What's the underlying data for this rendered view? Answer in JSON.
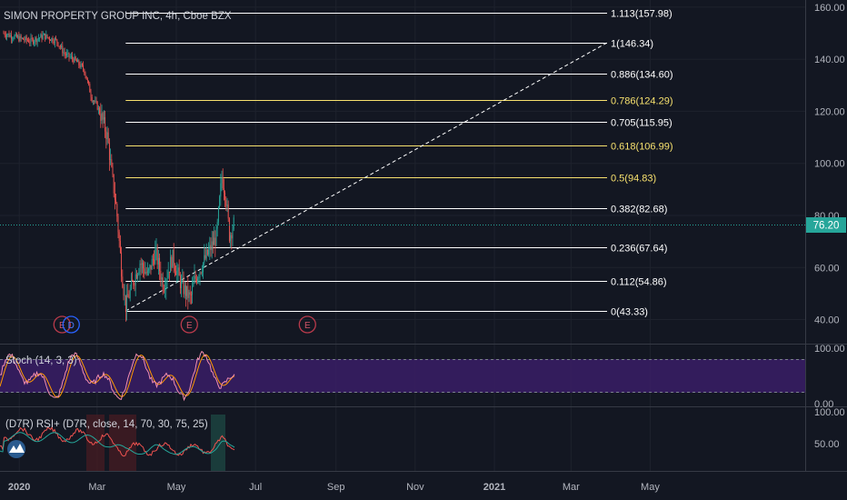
{
  "header": {
    "title": "SIMON PROPERTY GROUP INC, 4h, Cboe BZX"
  },
  "price_axis": {
    "ticks": [
      "160.00",
      "140.00",
      "120.00",
      "100.00",
      "80.00",
      "60.00",
      "40.00"
    ],
    "last_price": "76.20",
    "last_price_color": "#26a69a"
  },
  "time_axis": {
    "labels": [
      "2020",
      "Mar",
      "May",
      "Jul",
      "Sep",
      "Nov",
      "2021",
      "Mar",
      "May"
    ]
  },
  "fib_levels": [
    {
      "label": "1.113(157.98)",
      "price": 157.98,
      "color": "#ffffff"
    },
    {
      "label": "1(146.34)",
      "price": 146.34,
      "color": "#ffffff"
    },
    {
      "label": "0.886(134.60)",
      "price": 134.6,
      "color": "#ffffff"
    },
    {
      "label": "0.786(124.29)",
      "price": 124.29,
      "color": "#f7e16e"
    },
    {
      "label": "0.705(115.95)",
      "price": 115.95,
      "color": "#ffffff"
    },
    {
      "label": "0.618(106.99)",
      "price": 106.99,
      "color": "#f7e16e"
    },
    {
      "label": "0.5(94.83)",
      "price": 94.83,
      "color": "#f7e16e"
    },
    {
      "label": "0.382(82.68)",
      "price": 82.68,
      "color": "#ffffff"
    },
    {
      "label": "0.236(67.64)",
      "price": 67.64,
      "color": "#ffffff"
    },
    {
      "label": "0.112(54.86)",
      "price": 54.86,
      "color": "#ffffff"
    },
    {
      "label": "0(43.33)",
      "price": 43.33,
      "color": "#ffffff"
    }
  ],
  "event_markers": [
    {
      "label": "E",
      "date": "2020-02-03"
    },
    {
      "label": "D",
      "date": "2020-02-10"
    },
    {
      "label": "E",
      "date": "2020-05-11"
    },
    {
      "label": "E",
      "date": "2020-08-10"
    }
  ],
  "stoch": {
    "title": "Stoch (14, 3, 3)",
    "ticks": [
      "100.00",
      "0.00"
    ],
    "upper": 80,
    "lower": 20
  },
  "rsi": {
    "title": "(D7R) RSI+ (D7R, close, 14, 70, 30, 75, 25)",
    "ticks": [
      "100.00",
      "50.00"
    ]
  },
  "chart_data": {
    "type": "line",
    "title": "SIMON PROPERTY GROUP INC, 4h, Cboe BZX",
    "x_start": "2019-12-20",
    "ylim": [
      35,
      165
    ],
    "series": [
      {
        "name": "",
        "x": [
          "2019-12-20",
          "2020-01-01",
          "2020-01-10",
          "2020-01-20",
          "2020-01-30",
          "2020-02-05",
          "2020-02-12",
          "2020-02-20",
          "2020-02-26",
          "2020-03-01",
          "2020-03-05",
          "2020-03-09",
          "2020-03-12",
          "2020-03-16",
          "2020-03-18",
          "2020-03-20",
          "2020-03-23",
          "2020-03-27",
          "2020-04-03",
          "2020-04-09",
          "2020-04-15",
          "2020-04-21",
          "2020-04-28",
          "2020-05-05",
          "2020-05-12",
          "2020-05-15",
          "2020-05-20",
          "2020-05-26",
          "2020-06-01",
          "2020-06-05",
          "2020-06-08",
          "2020-06-11",
          "2020-06-15"
        ],
        "values": [
          150,
          148,
          147,
          149,
          147,
          142,
          140,
          136,
          125,
          122,
          117,
          110,
          97,
          82,
          70,
          58,
          45,
          52,
          62,
          57,
          66,
          53,
          64,
          53,
          48,
          55,
          60,
          66,
          72,
          95,
          88,
          72,
          78
        ]
      }
    ],
    "fib_anchor_low": {
      "x": "2020-03-23",
      "y": 43.33
    },
    "fib_anchor_high": {
      "x": "2021-05-15",
      "y": 146.34
    }
  }
}
